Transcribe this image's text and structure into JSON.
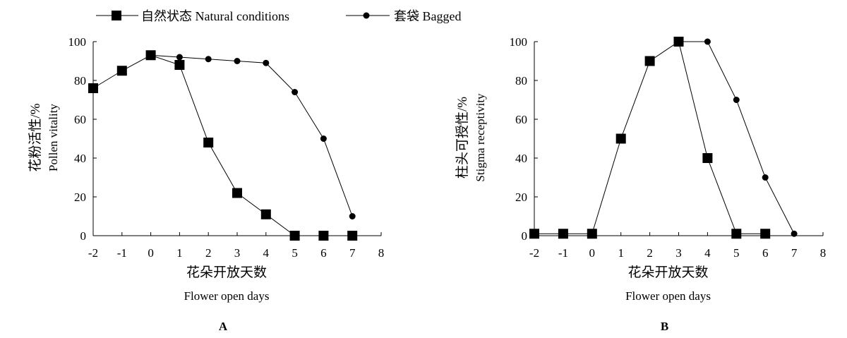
{
  "legend": [
    {
      "label": "自然状态 Natural conditions",
      "marker": "square"
    },
    {
      "label": "套袋 Bagged",
      "marker": "circle"
    }
  ],
  "chart_data": [
    {
      "type": "line",
      "panel": "A",
      "xlabel_cn": "花朵开放天数",
      "xlabel_en": "Flower open days",
      "ylabel_cn": "花粉活性/%",
      "ylabel_en": "Pollen vitality",
      "xlim": [
        -2,
        8
      ],
      "ylim": [
        0,
        100
      ],
      "xticks": [
        -2,
        -1,
        0,
        1,
        2,
        3,
        4,
        5,
        6,
        7,
        8
      ],
      "yticks": [
        0,
        20,
        40,
        60,
        80,
        100
      ],
      "grid": false,
      "series": [
        {
          "name": "自然状态 Natural conditions",
          "marker": "square",
          "x": [
            -2,
            -1,
            0,
            1,
            2,
            3,
            4,
            5,
            6,
            7
          ],
          "values": [
            76,
            85,
            93,
            88,
            48,
            22,
            11,
            0,
            0,
            0
          ]
        },
        {
          "name": "套袋 Bagged",
          "marker": "circle",
          "x": [
            0,
            1,
            2,
            3,
            4,
            5,
            6,
            7
          ],
          "values": [
            93,
            92,
            91,
            90,
            89,
            74,
            50,
            10
          ]
        }
      ]
    },
    {
      "type": "line",
      "panel": "B",
      "xlabel_cn": "花朵开放天数",
      "xlabel_en": "Flower open days",
      "ylabel_cn": "柱头可授性/%",
      "ylabel_en": "Stigma receptivity",
      "xlim": [
        -2,
        8
      ],
      "ylim": [
        0,
        100
      ],
      "xticks": [
        -2,
        -1,
        0,
        1,
        2,
        3,
        4,
        5,
        6,
        7,
        8
      ],
      "yticks": [
        0,
        20,
        40,
        60,
        80,
        100
      ],
      "grid": false,
      "series": [
        {
          "name": "自然状态 Natural conditions",
          "marker": "square",
          "x": [
            -2,
            -1,
            0,
            1,
            2,
            3,
            4,
            5,
            6
          ],
          "values": [
            1,
            1,
            1,
            50,
            90,
            100,
            40,
            1,
            1
          ]
        },
        {
          "name": "套袋 Bagged",
          "marker": "circle",
          "x": [
            3,
            4,
            5,
            6,
            7
          ],
          "values": [
            100,
            100,
            70,
            30,
            1
          ]
        }
      ]
    }
  ]
}
